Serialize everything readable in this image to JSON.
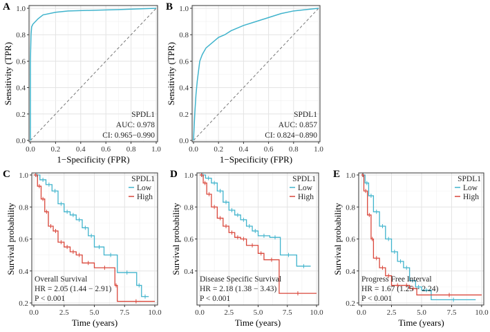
{
  "colors": {
    "low": "#3FB3CC",
    "high": "#D9463A",
    "roc": "#3FB3CC",
    "diag": "#777777"
  },
  "chart_data": [
    {
      "panel": "A",
      "type": "line",
      "xlabel": "1−Specificity (FPR)",
      "ylabel": "Sensitivity (TPR)",
      "xlim": [
        0,
        1
      ],
      "ylim": [
        0,
        1
      ],
      "xticks": [
        "0.0",
        "0.2",
        "0.4",
        "0.6",
        "0.8",
        "1.0"
      ],
      "yticks": [
        "0.0",
        "0.2",
        "0.4",
        "0.6",
        "0.8",
        "1.0"
      ],
      "annotations": [
        "SPDL1",
        "AUC: 0.978",
        "CI: 0.965−0.990"
      ],
      "series": [
        {
          "name": "ROC",
          "x": [
            0,
            0,
            0.005,
            0.01,
            0.02,
            0.04,
            0.06,
            0.1,
            0.2,
            0.3,
            0.5,
            0.7,
            1
          ],
          "y": [
            0,
            0.6,
            0.8,
            0.86,
            0.88,
            0.9,
            0.92,
            0.95,
            0.97,
            0.98,
            0.985,
            0.99,
            1
          ]
        }
      ]
    },
    {
      "panel": "B",
      "type": "line",
      "xlabel": "1−Specificity (FPR)",
      "ylabel": "Sensitivity (TPR)",
      "xlim": [
        0,
        1
      ],
      "ylim": [
        0,
        1
      ],
      "xticks": [
        "0.0",
        "0.2",
        "0.4",
        "0.6",
        "0.8",
        "1.0"
      ],
      "yticks": [
        "0.0",
        "0.2",
        "0.4",
        "0.6",
        "0.8",
        "1.0"
      ],
      "annotations": [
        "SPDL1",
        "AUC: 0.857",
        "CI: 0.824−0.890"
      ],
      "series": [
        {
          "name": "ROC",
          "x": [
            0,
            0.01,
            0.02,
            0.03,
            0.05,
            0.07,
            0.1,
            0.15,
            0.2,
            0.25,
            0.3,
            0.4,
            0.5,
            0.6,
            0.7,
            0.8,
            0.9,
            1
          ],
          "y": [
            0,
            0.2,
            0.35,
            0.45,
            0.6,
            0.65,
            0.7,
            0.74,
            0.78,
            0.8,
            0.83,
            0.87,
            0.9,
            0.93,
            0.96,
            0.98,
            0.99,
            1
          ]
        }
      ]
    },
    {
      "panel": "C",
      "type": "line",
      "xlabel": "Time (years)",
      "ylabel": "Survival probability",
      "xlim": [
        0,
        10
      ],
      "ylim": [
        0.2,
        1
      ],
      "xticks": [
        "0.0",
        "2.5",
        "5.0",
        "7.5",
        "10.0"
      ],
      "yticks": [
        "0.2",
        "0.4",
        "0.6",
        "0.8",
        "1.0"
      ],
      "legend_title": "SPDL1",
      "annotations": [
        "Overall Survival",
        "HR = 2.05  (1.44 − 2.91)",
        "P < 0.001"
      ],
      "series": [
        {
          "name": "Low",
          "x": [
            0,
            0.5,
            1,
            1.5,
            2,
            2.5,
            3,
            3.5,
            4,
            4.5,
            5,
            5.8,
            6.9,
            8.5,
            8.9,
            9.5
          ],
          "y": [
            1,
            0.97,
            0.94,
            0.9,
            0.82,
            0.77,
            0.75,
            0.72,
            0.67,
            0.62,
            0.55,
            0.5,
            0.39,
            0.31,
            0.24,
            0.24
          ]
        },
        {
          "name": "High",
          "x": [
            0,
            0.3,
            0.6,
            0.9,
            1.2,
            1.6,
            2,
            2.5,
            3,
            3.5,
            4,
            5,
            6.7,
            6.9,
            10
          ],
          "y": [
            1,
            0.93,
            0.85,
            0.77,
            0.68,
            0.65,
            0.58,
            0.55,
            0.52,
            0.5,
            0.45,
            0.42,
            0.31,
            0.21,
            0.21
          ]
        }
      ]
    },
    {
      "panel": "D",
      "type": "line",
      "xlabel": "Time (years)",
      "ylabel": "Survival probability",
      "xlim": [
        0,
        10
      ],
      "ylim": [
        0.2,
        1
      ],
      "xticks": [
        "0.0",
        "2.5",
        "5.0",
        "7.5",
        "10.0"
      ],
      "yticks": [
        "0.4",
        "0.6",
        "0.8",
        "1.0"
      ],
      "legend_title": "SPDL1",
      "annotations": [
        "Disease  Specific  Survival",
        "HR = 2.18  (1.38 − 3.43)",
        "P < 0.001"
      ],
      "series": [
        {
          "name": "Low",
          "x": [
            0,
            0.5,
            1,
            1.5,
            2,
            2.5,
            3,
            3.5,
            4,
            4.5,
            5,
            6,
            6.9,
            8.3,
            9.5
          ],
          "y": [
            1,
            0.98,
            0.95,
            0.9,
            0.83,
            0.78,
            0.75,
            0.72,
            0.68,
            0.65,
            0.62,
            0.61,
            0.5,
            0.43,
            0.43
          ]
        },
        {
          "name": "High",
          "x": [
            0,
            0.3,
            0.6,
            1,
            1.5,
            2,
            2.5,
            3,
            3.5,
            4,
            5,
            5.5,
            6.8,
            10
          ],
          "y": [
            1,
            0.95,
            0.88,
            0.8,
            0.73,
            0.68,
            0.64,
            0.61,
            0.6,
            0.56,
            0.51,
            0.47,
            0.26,
            0.26
          ]
        }
      ]
    },
    {
      "panel": "E",
      "type": "line",
      "xlabel": "Time (years)",
      "ylabel": "Survival probability",
      "xlim": [
        0,
        10
      ],
      "ylim": [
        0.2,
        1
      ],
      "xticks": [
        "0.0",
        "2.5",
        "5.0",
        "7.5",
        "10.0"
      ],
      "yticks": [
        "0.2",
        "0.4",
        "0.6",
        "0.8",
        "1.0"
      ],
      "legend_title": "SPDL1",
      "annotations": [
        "Progress   Free  Interval",
        "HR = 1.67  (1.25 − 2.24)",
        "P < 0.001"
      ],
      "series": [
        {
          "name": "Low",
          "x": [
            0,
            0.3,
            0.6,
            1,
            1.5,
            2,
            2.5,
            3,
            3.5,
            4,
            4.5,
            5,
            5.8,
            9.5
          ],
          "y": [
            1,
            0.95,
            0.87,
            0.77,
            0.68,
            0.6,
            0.52,
            0.46,
            0.42,
            0.34,
            0.3,
            0.28,
            0.22,
            0.22
          ]
        },
        {
          "name": "High",
          "x": [
            0,
            0.2,
            0.5,
            0.8,
            1,
            1.5,
            2,
            2.5,
            3.5,
            4,
            4.6,
            10
          ],
          "y": [
            1,
            0.9,
            0.75,
            0.6,
            0.48,
            0.42,
            0.37,
            0.31,
            0.31,
            0.29,
            0.25,
            0.25
          ]
        }
      ]
    }
  ]
}
